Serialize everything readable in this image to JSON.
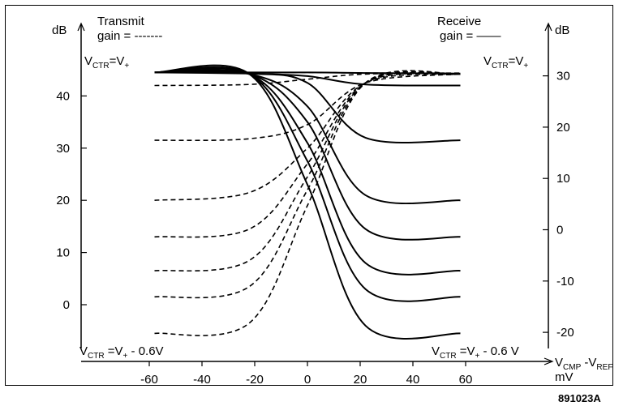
{
  "chart_data": {
    "type": "line",
    "left_axis": {
      "unit": "dB",
      "ticks": [
        "40",
        "30",
        "20",
        "10",
        "0"
      ]
    },
    "right_axis": {
      "unit": "dB",
      "ticks": [
        "30",
        "20",
        "10",
        "0",
        "-10",
        "-20"
      ]
    },
    "x_axis": {
      "ticks": [
        "-60",
        "-40",
        "-20",
        "0",
        "20",
        "40",
        "60"
      ],
      "label": {
        "main": "V",
        "sub1": "CMP",
        "mid": " -V",
        "sub2": "REF"
      },
      "unit": "mV",
      "xlim": [
        -60,
        60
      ]
    },
    "legend": {
      "transmit_line1": "Transmit",
      "transmit_line2": "gain = -------",
      "receive_line1": "Receive",
      "receive_line2": "gain = ——"
    },
    "annotations": {
      "vctr_top_left": {
        "main": "V",
        "sub": "CTR",
        "rest": "=V",
        "sub2": "+"
      },
      "vctr_top_right": {
        "main": "V",
        "sub": "CTR",
        "rest": "=V",
        "sub2": "+"
      },
      "vctr_bottom_left": {
        "main": "V",
        "sub": "CTR",
        "rest": " =V",
        "sub2": "+",
        "tail": " - 0.6V"
      },
      "vctr_bottom_right": {
        "main": "V",
        "sub": "CTR",
        "rest": " =V",
        "sub2": "+",
        "tail": " - 0.6 V"
      }
    },
    "figure_id": "891023A",
    "series": [
      {
        "style": "dashed",
        "y_left": [
          44.5,
          44.5,
          44.5,
          44.4,
          44.3
        ]
      },
      {
        "style": "dashed",
        "y_left": [
          42,
          42.2,
          43.2,
          44.2,
          44.4
        ]
      },
      {
        "style": "dashed",
        "y_left": [
          31.5,
          31.8,
          34.5,
          42.5,
          44.2
        ]
      },
      {
        "style": "dashed",
        "y_left": [
          20,
          21.5,
          30,
          42.5,
          44.2
        ]
      },
      {
        "style": "dashed",
        "y_left": [
          13,
          14.5,
          27,
          42.5,
          44.2
        ]
      },
      {
        "style": "dashed",
        "y_left": [
          6.5,
          8.5,
          24.5,
          42.5,
          44.2
        ]
      },
      {
        "style": "dashed",
        "y_left": [
          1.5,
          3.5,
          22,
          42.5,
          44.2
        ]
      },
      {
        "style": "dashed",
        "y_left": [
          -5.5,
          -3.5,
          19,
          42.5,
          44.2
        ]
      },
      {
        "style": "solid",
        "y_left": [
          44.5,
          44.5,
          44.5,
          44.4,
          44.3
        ]
      },
      {
        "style": "solid",
        "y_left": [
          44.5,
          44.3,
          43.8,
          42.2,
          42
        ]
      },
      {
        "style": "solid",
        "y_left": [
          44.5,
          44.3,
          42.5,
          32,
          31.5
        ]
      },
      {
        "style": "solid",
        "y_left": [
          44.5,
          44.2,
          38,
          21,
          20
        ]
      },
      {
        "style": "solid",
        "y_left": [
          44.5,
          44.2,
          35,
          14.5,
          13
        ]
      },
      {
        "style": "solid",
        "y_left": [
          44.5,
          44.2,
          31,
          8,
          6.5
        ]
      },
      {
        "style": "solid",
        "y_left": [
          44.5,
          44.2,
          27.5,
          3,
          1.5
        ]
      },
      {
        "style": "solid",
        "y_left": [
          44.5,
          44.2,
          23,
          -4,
          -5.5
        ]
      }
    ]
  }
}
